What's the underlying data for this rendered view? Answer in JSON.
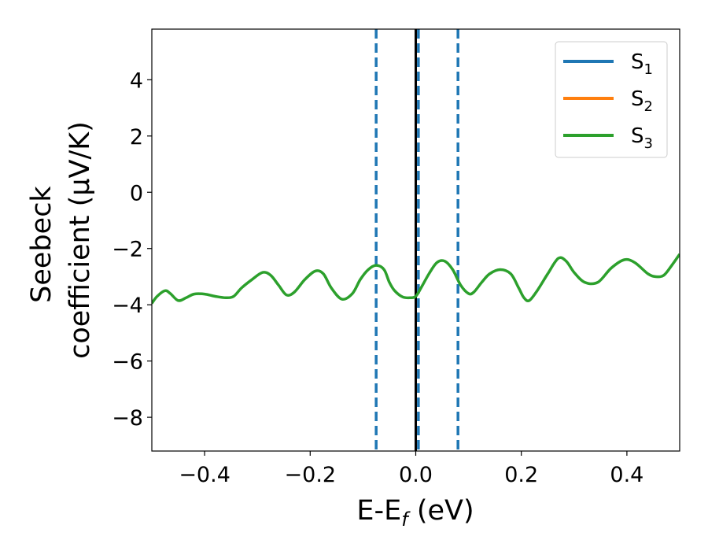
{
  "chart_data": {
    "type": "line",
    "title": "",
    "xlabel": {
      "main": "E-E",
      "sub": "f",
      "rest": " (eV)"
    },
    "ylabel": {
      "line1": "Seebeck",
      "line2": "coefficient  (μV/K)"
    },
    "xlim": [
      -0.5,
      0.5
    ],
    "ylim": [
      -9.2,
      5.8
    ],
    "xticks": [
      -0.4,
      -0.2,
      0.0,
      0.2,
      0.4
    ],
    "xtick_labels": [
      "−0.4",
      "−0.2",
      "0.0",
      "0.2",
      "0.4"
    ],
    "yticks": [
      4,
      2,
      0,
      -2,
      -4,
      -6,
      -8
    ],
    "ytick_labels": [
      "4",
      "2",
      "0",
      "−2",
      "−4",
      "−6",
      "−8"
    ],
    "grid": false,
    "legend": {
      "placement": "top-right",
      "entries": [
        {
          "base": "S",
          "sub": "1",
          "color": "#1f77b4"
        },
        {
          "base": "S",
          "sub": "2",
          "color": "#ff7f0e"
        },
        {
          "base": "S",
          "sub": "3",
          "color": "#2ca02c"
        }
      ]
    },
    "vlines": [
      {
        "x": -0.075,
        "style": "dashed",
        "color": "#1f77b4"
      },
      {
        "x": 0.005,
        "style": "dashed",
        "color": "#1f77b4"
      },
      {
        "x": 0.08,
        "style": "dashed",
        "color": "#1f77b4"
      },
      {
        "x": 0.0,
        "style": "solid",
        "color": "#000000"
      }
    ],
    "series": [
      {
        "color": "#2ca02c",
        "note_overlap": "S1 and S2 identical, hidden beneath S3",
        "x": [
          -0.5,
          -0.49,
          -0.475,
          -0.465,
          -0.45,
          -0.435,
          -0.42,
          -0.4,
          -0.38,
          -0.36,
          -0.345,
          -0.33,
          -0.31,
          -0.29,
          -0.275,
          -0.26,
          -0.245,
          -0.23,
          -0.21,
          -0.19,
          -0.175,
          -0.16,
          -0.14,
          -0.12,
          -0.105,
          -0.09,
          -0.075,
          -0.06,
          -0.05,
          -0.04,
          -0.025,
          -0.01,
          0.0,
          0.01,
          0.025,
          0.04,
          0.055,
          0.07,
          0.085,
          0.1,
          0.11,
          0.125,
          0.14,
          0.16,
          0.18,
          0.195,
          0.205,
          0.215,
          0.23,
          0.25,
          0.27,
          0.285,
          0.3,
          0.32,
          0.345,
          0.37,
          0.395,
          0.415,
          0.44,
          0.455,
          0.47,
          0.485,
          0.5
        ],
        "y": [
          -3.95,
          -3.7,
          -3.5,
          -3.6,
          -3.85,
          -3.75,
          -3.62,
          -3.62,
          -3.7,
          -3.75,
          -3.7,
          -3.4,
          -3.1,
          -2.85,
          -2.95,
          -3.3,
          -3.65,
          -3.55,
          -3.1,
          -2.8,
          -2.9,
          -3.4,
          -3.8,
          -3.6,
          -3.1,
          -2.75,
          -2.6,
          -2.75,
          -3.2,
          -3.5,
          -3.72,
          -3.75,
          -3.7,
          -3.4,
          -2.9,
          -2.5,
          -2.45,
          -2.75,
          -3.3,
          -3.6,
          -3.55,
          -3.2,
          -2.9,
          -2.75,
          -2.9,
          -3.4,
          -3.75,
          -3.85,
          -3.5,
          -2.9,
          -2.35,
          -2.45,
          -2.85,
          -3.2,
          -3.2,
          -2.7,
          -2.4,
          -2.5,
          -2.9,
          -3.0,
          -2.95,
          -2.6,
          -2.2
        ]
      }
    ]
  }
}
